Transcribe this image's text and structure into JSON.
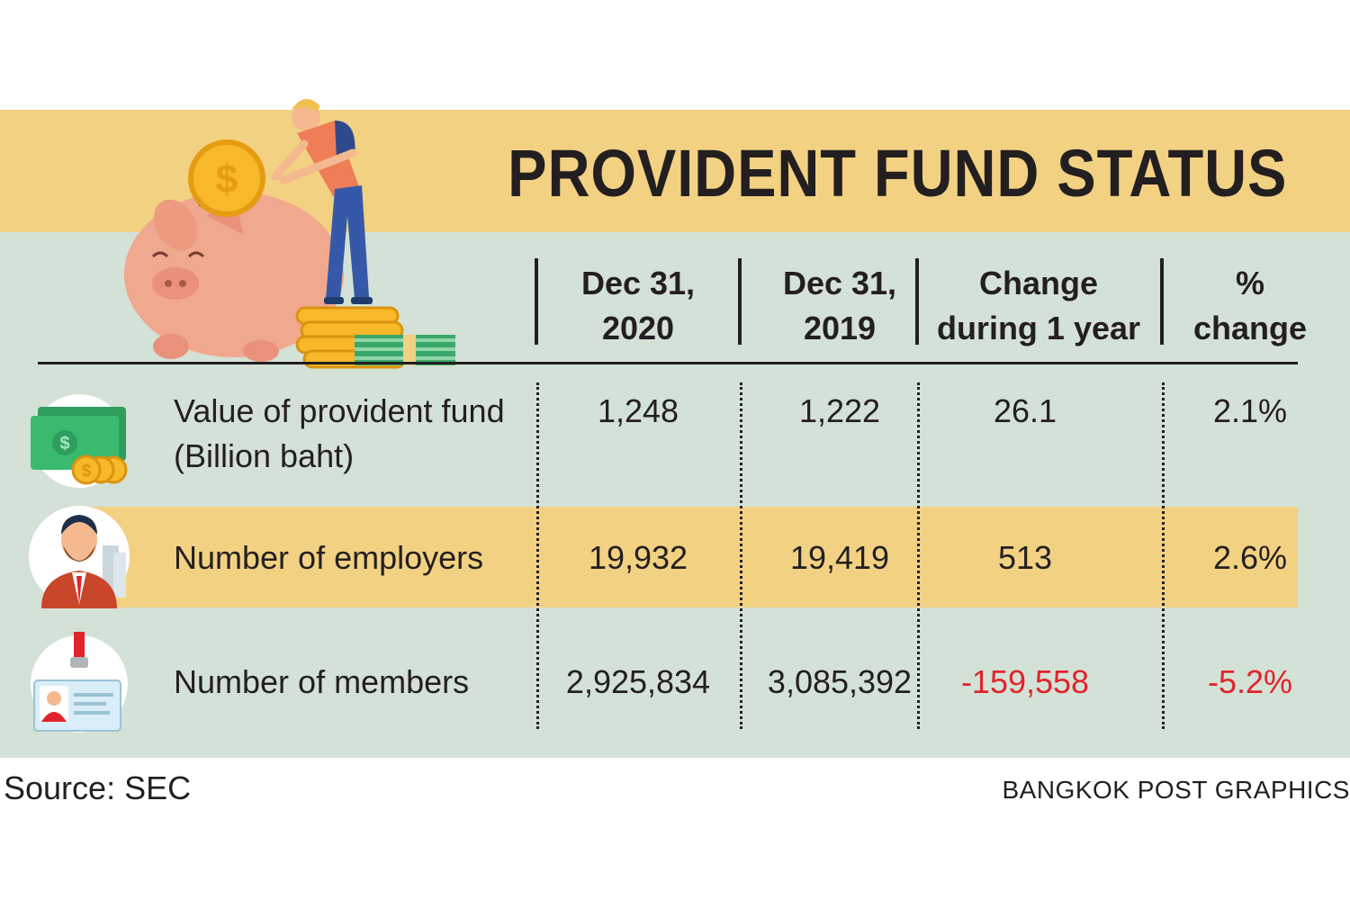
{
  "title": "PROVIDENT FUND STATUS",
  "colors": {
    "title_band": "#f2d183",
    "panel": "#d4e1d6",
    "negative": "#e0242b"
  },
  "chart_data": {
    "type": "table",
    "title": "PROVIDENT FUND STATUS",
    "columns": [
      {
        "line1": "Dec 31,",
        "line2": "2020"
      },
      {
        "line1": "Dec 31,",
        "line2": "2019"
      },
      {
        "line1": "Change",
        "line2": "during 1 year"
      },
      {
        "line1": "%",
        "line2": "change"
      }
    ],
    "rows": [
      {
        "label_line1": "Value of provident fund",
        "label_line2": "(Billion baht)",
        "icon": "money-coins-icon",
        "values": [
          "1,248",
          "1,222",
          "26.1",
          "2.1%"
        ]
      },
      {
        "label_line1": "Number of employers",
        "label_line2": "",
        "icon": "employer-icon",
        "values": [
          "19,932",
          "19,419",
          "513",
          "2.6%"
        ]
      },
      {
        "label_line1": "Number of members",
        "label_line2": "",
        "icon": "id-badge-icon",
        "values": [
          "2,925,834",
          "3,085,392",
          "-159,558",
          "-5.2%"
        ]
      }
    ]
  },
  "footer": {
    "source": "Source: SEC",
    "credit": "BANGKOK POST GRAPHICS"
  }
}
